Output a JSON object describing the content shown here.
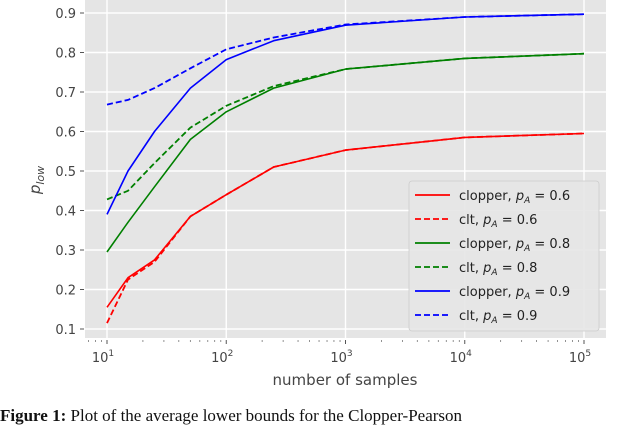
{
  "chart_data": {
    "type": "line",
    "title": "",
    "xlabel": "number of samples",
    "ylabel": "p_low",
    "xscale": "log",
    "xlim": [
      7,
      150000
    ],
    "ylim": [
      0.08,
      0.93
    ],
    "grid": true,
    "legend_position": "lower right",
    "x_ticks": [
      "10^1",
      "10^2",
      "10^3",
      "10^4",
      "10^5"
    ],
    "y_ticks": [
      "0.1",
      "0.2",
      "0.3",
      "0.4",
      "0.5",
      "0.6",
      "0.7",
      "0.8",
      "0.9"
    ],
    "x": [
      10,
      15,
      25,
      50,
      100,
      250,
      1000,
      10000,
      100000
    ],
    "series": [
      {
        "name": "clopper, p_A = 0.6",
        "color": "#ff0000",
        "style": "solid",
        "values": [
          0.155,
          0.23,
          0.275,
          0.385,
          0.44,
          0.51,
          0.553,
          0.585,
          0.595
        ]
      },
      {
        "name": "clt, p_A = 0.6",
        "color": "#ff0000",
        "style": "dashed",
        "values": [
          0.115,
          0.225,
          0.27,
          0.385,
          0.44,
          0.51,
          0.553,
          0.585,
          0.595
        ]
      },
      {
        "name": "clopper, p_A = 0.8",
        "color": "#008000",
        "style": "solid",
        "values": [
          0.295,
          0.37,
          0.46,
          0.58,
          0.65,
          0.71,
          0.758,
          0.785,
          0.797
        ]
      },
      {
        "name": "clt, p_A = 0.8",
        "color": "#008000",
        "style": "dashed",
        "values": [
          0.428,
          0.45,
          0.52,
          0.61,
          0.665,
          0.715,
          0.758,
          0.785,
          0.797
        ]
      },
      {
        "name": "clopper, p_A = 0.9",
        "color": "#0000ff",
        "style": "solid",
        "values": [
          0.39,
          0.5,
          0.6,
          0.71,
          0.782,
          0.83,
          0.869,
          0.89,
          0.897
        ]
      },
      {
        "name": "clt, p_A = 0.9",
        "color": "#0000ff",
        "style": "dashed",
        "values": [
          0.668,
          0.68,
          0.71,
          0.76,
          0.808,
          0.838,
          0.871,
          0.89,
          0.897
        ]
      }
    ]
  },
  "legend": {
    "items": [
      {
        "prefix": "clopper, ",
        "sub": "A",
        "value": " = 0.6"
      },
      {
        "prefix": "clt, ",
        "sub": "A",
        "value": " = 0.6"
      },
      {
        "prefix": "clopper, ",
        "sub": "A",
        "value": " = 0.8"
      },
      {
        "prefix": "clt, ",
        "sub": "A",
        "value": " = 0.8"
      },
      {
        "prefix": "clopper, ",
        "sub": "A",
        "value": " = 0.9"
      },
      {
        "prefix": "clt, ",
        "sub": "A",
        "value": " = 0.9"
      }
    ]
  },
  "axes": {
    "xlabel": "number of samples",
    "ylabel_main": "p",
    "ylabel_sub": "low"
  },
  "caption": {
    "label": "Figure 1:",
    "text": " Plot of the average lower bounds for the Clopper-Pearson"
  },
  "colors": {
    "plot_bg": "#e5e5e5",
    "grid": "#ffffff"
  }
}
